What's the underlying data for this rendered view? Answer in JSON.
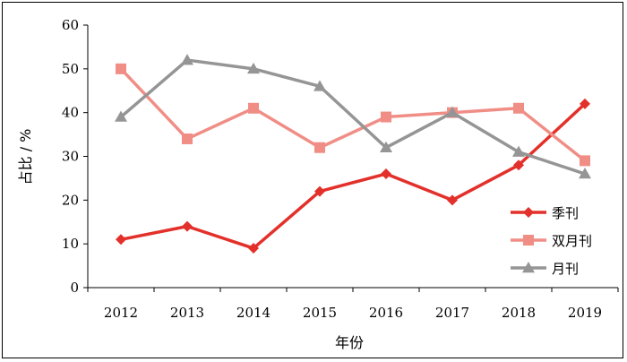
{
  "chart_data": {
    "type": "line",
    "title": "",
    "xlabel": "年份",
    "ylabel": "占比 / %",
    "categories": [
      "2012",
      "2013",
      "2014",
      "2015",
      "2016",
      "2017",
      "2018",
      "2019"
    ],
    "ylim": [
      0,
      60
    ],
    "yticks": [
      0,
      10,
      20,
      30,
      40,
      50,
      60
    ],
    "grid": false,
    "legend": "bottom-right",
    "series": [
      {
        "name": "季刊",
        "marker": "diamond",
        "color": "#e3302a",
        "values": [
          11,
          14,
          9,
          22,
          26,
          20,
          28,
          42
        ]
      },
      {
        "name": "双月刊",
        "marker": "square",
        "color": "#f08e86",
        "values": [
          50,
          34,
          41,
          32,
          39,
          40,
          41,
          29
        ]
      },
      {
        "name": "月刊",
        "marker": "triangle",
        "color": "#959595",
        "values": [
          39,
          52,
          50,
          46,
          32,
          40,
          31,
          26
        ]
      }
    ]
  }
}
